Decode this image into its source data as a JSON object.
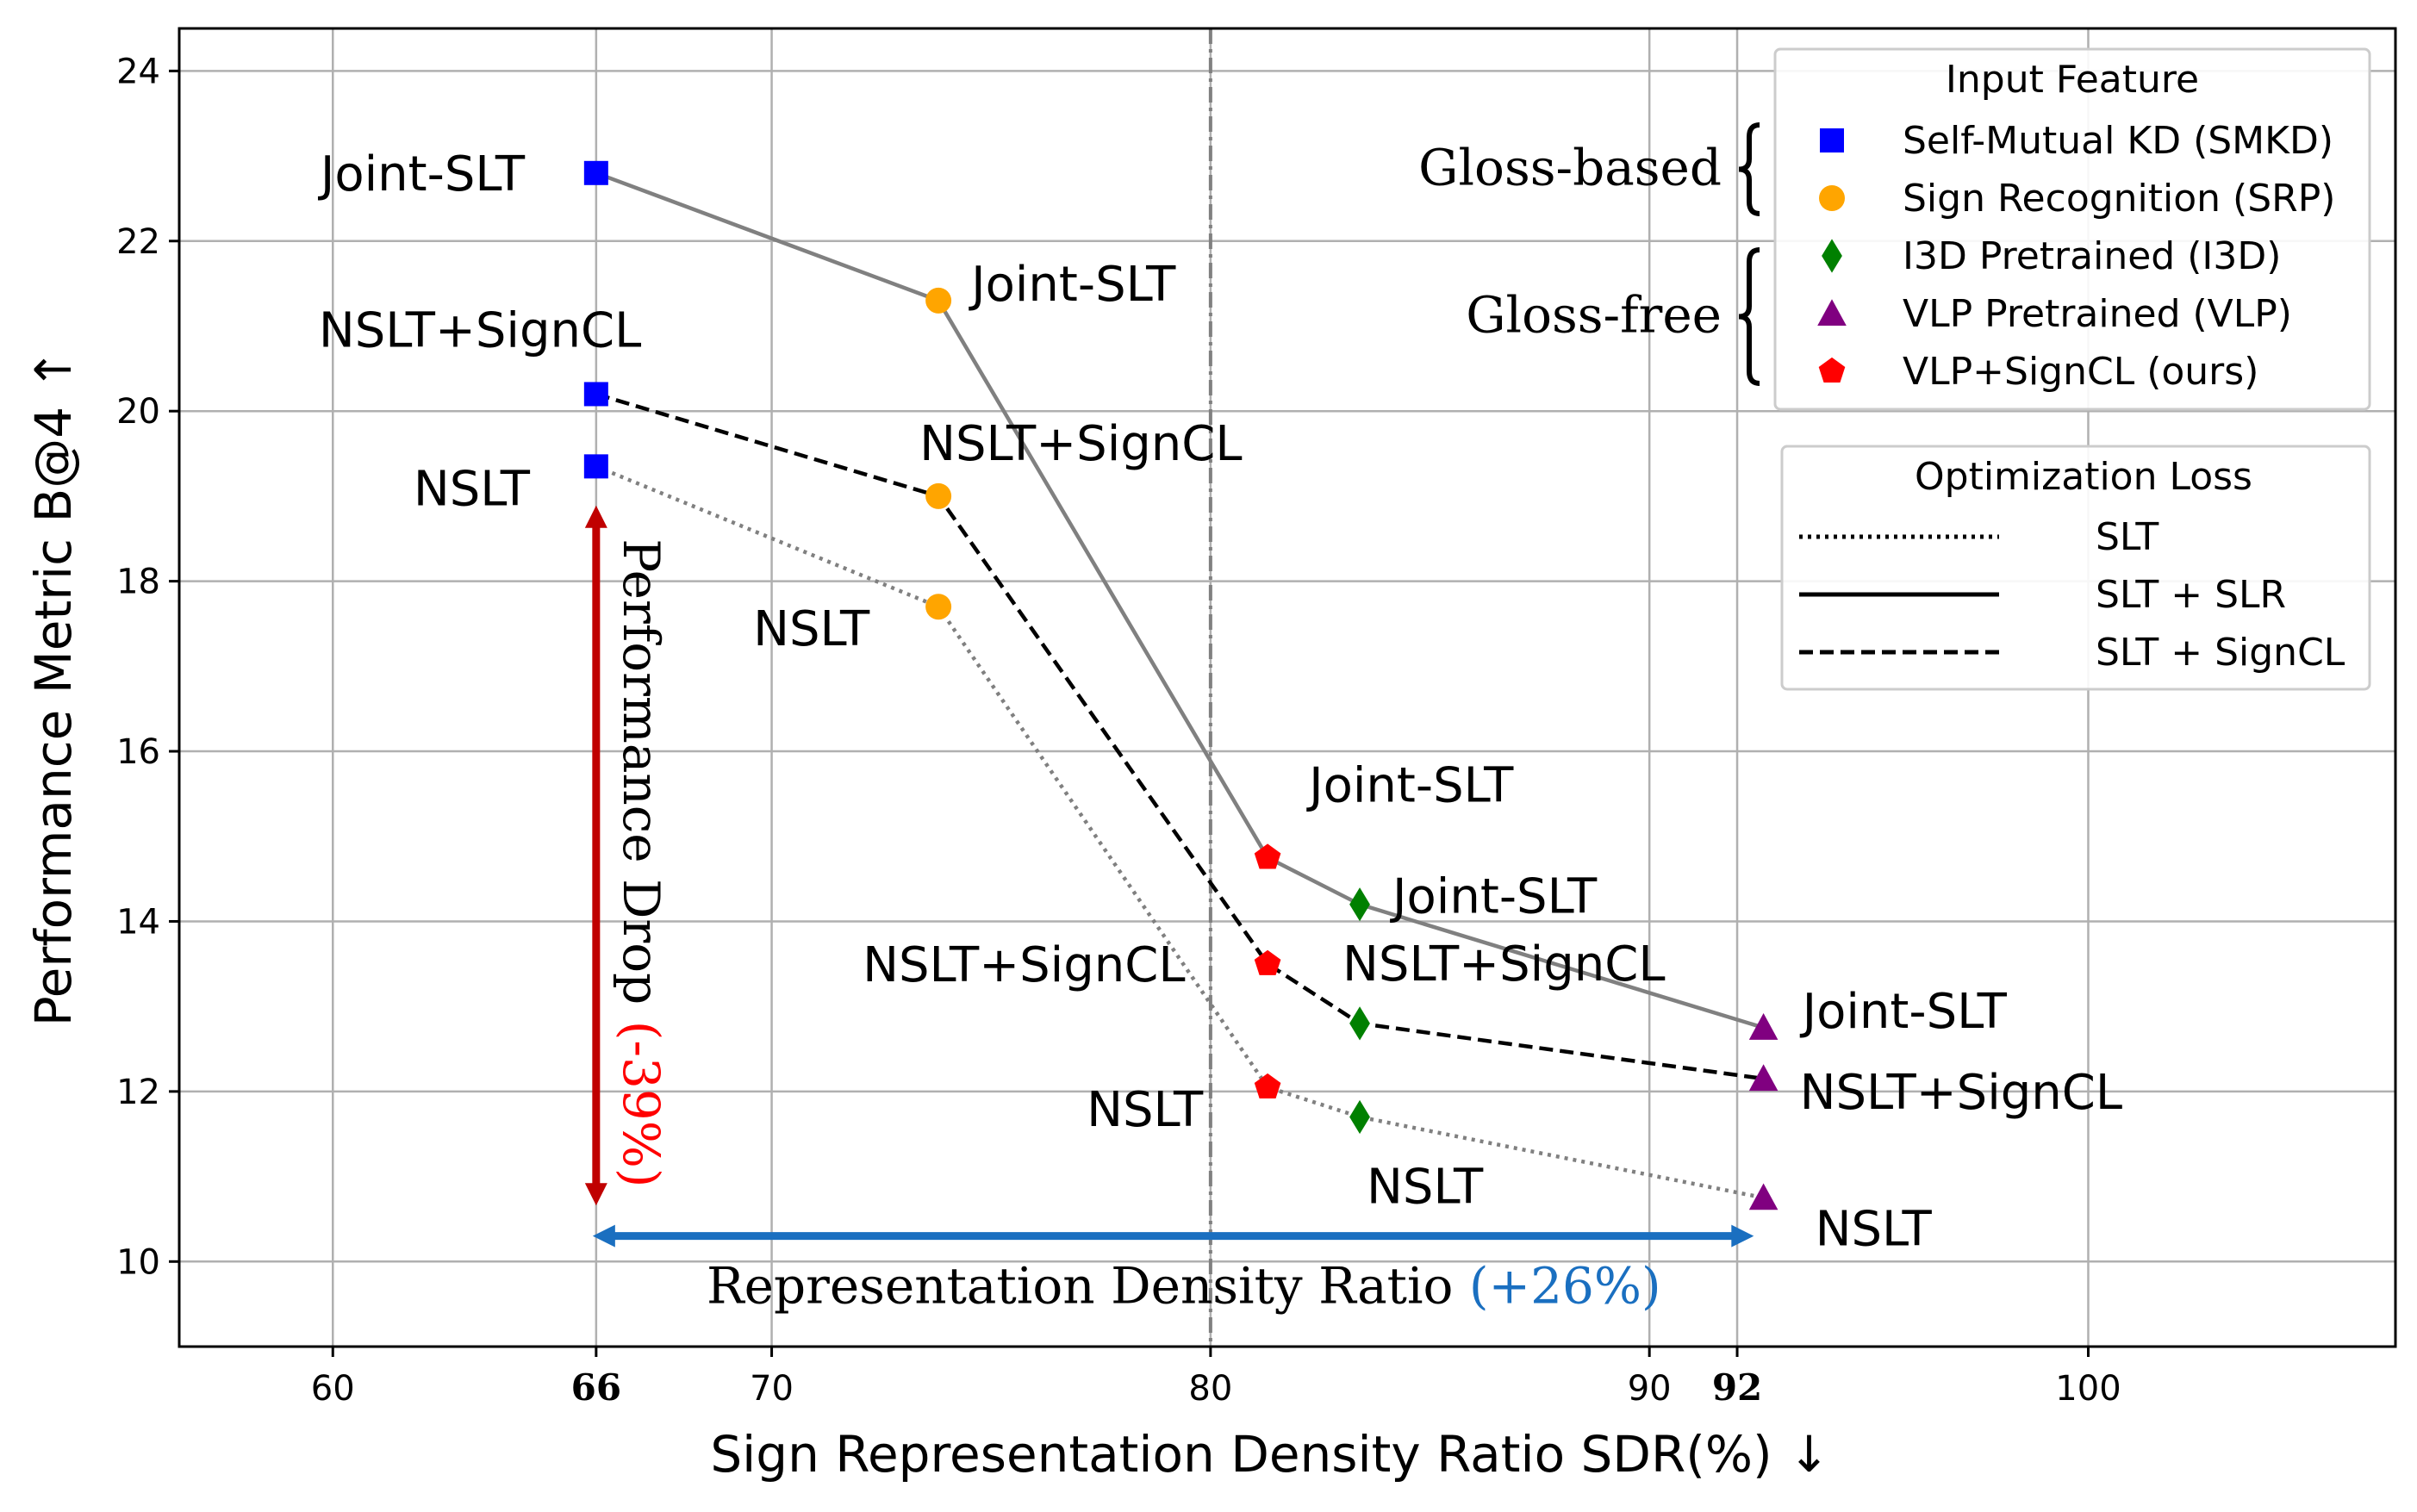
{
  "chart_data": {
    "type": "scatter",
    "xlabel": "Sign Representation Density Ratio SDR(%) ↓",
    "ylabel": "Performance Metric B@4 ↑",
    "xlim": [
      56.5,
      107
    ],
    "ylim": [
      9,
      24.5
    ],
    "xticks": [
      60,
      66,
      70,
      80,
      90,
      92,
      100
    ],
    "bold_xticks": [
      66,
      92
    ],
    "yticks": [
      10,
      12,
      14,
      16,
      18,
      20,
      22,
      24
    ],
    "grid": true,
    "vline_x": 80,
    "points": [
      {
        "feature": "SMKD",
        "loss": "SLT + SLR",
        "x": 66,
        "y": 22.8,
        "label": "Joint-SLT"
      },
      {
        "feature": "SMKD",
        "loss": "SLT + SignCL",
        "x": 66,
        "y": 20.2,
        "label": "NSLT+SignCL"
      },
      {
        "feature": "SMKD",
        "loss": "SLT",
        "x": 66,
        "y": 19.35,
        "label": "NSLT"
      },
      {
        "feature": "SRP",
        "loss": "SLT + SLR",
        "x": 73.8,
        "y": 21.3,
        "label": "Joint-SLT"
      },
      {
        "feature": "SRP",
        "loss": "SLT + SignCL",
        "x": 73.8,
        "y": 19.0,
        "label": "NSLT+SignCL"
      },
      {
        "feature": "SRP",
        "loss": "SLT",
        "x": 73.8,
        "y": 17.7,
        "label": "NSLT"
      },
      {
        "feature": "VLP+SignCL",
        "loss": "SLT + SLR",
        "x": 81.3,
        "y": 14.75,
        "label": "Joint-SLT"
      },
      {
        "feature": "VLP+SignCL",
        "loss": "SLT + SignCL",
        "x": 81.3,
        "y": 13.5,
        "label": "NSLT+SignCL"
      },
      {
        "feature": "VLP+SignCL",
        "loss": "SLT",
        "x": 81.3,
        "y": 12.05,
        "label": "NSLT"
      },
      {
        "feature": "I3D",
        "loss": "SLT + SLR",
        "x": 83.4,
        "y": 14.2,
        "label": "Joint-SLT"
      },
      {
        "feature": "I3D",
        "loss": "SLT + SignCL",
        "x": 83.4,
        "y": 12.8,
        "label": "NSLT+SignCL"
      },
      {
        "feature": "I3D",
        "loss": "SLT",
        "x": 83.4,
        "y": 11.7,
        "label": "NSLT"
      },
      {
        "feature": "VLP",
        "loss": "SLT + SLR",
        "x": 92.6,
        "y": 12.75,
        "label": "Joint-SLT"
      },
      {
        "feature": "VLP",
        "loss": "SLT + SignCL",
        "x": 92.6,
        "y": 12.15,
        "label": "NSLT+SignCL"
      },
      {
        "feature": "VLP",
        "loss": "SLT",
        "x": 92.6,
        "y": 10.75,
        "label": "NSLT"
      }
    ],
    "series": [
      {
        "loss": "SLT + SLR",
        "style": "solid",
        "color": "#808080",
        "x": [
          66,
          73.8,
          81.3,
          83.4,
          92.6
        ],
        "y": [
          22.8,
          21.3,
          14.75,
          14.2,
          12.75
        ]
      },
      {
        "loss": "SLT + SignCL",
        "style": "dashed",
        "color": "#000000",
        "x": [
          66,
          73.8,
          81.3,
          83.4,
          92.6
        ],
        "y": [
          20.2,
          19.0,
          13.5,
          12.8,
          12.15
        ]
      },
      {
        "loss": "SLT",
        "style": "dotted",
        "color": "#808080",
        "x": [
          66,
          73.8,
          81.3,
          83.4,
          92.6
        ],
        "y": [
          19.35,
          17.7,
          12.05,
          11.7,
          10.75
        ]
      }
    ],
    "features": {
      "SMKD": {
        "marker": "square",
        "color": "#0000ff"
      },
      "SRP": {
        "marker": "circle",
        "color": "#ffa500"
      },
      "I3D": {
        "marker": "diamond",
        "color": "#008000"
      },
      "VLP": {
        "marker": "triangle",
        "color": "#800080"
      },
      "VLP+SignCL": {
        "marker": "pentagon",
        "color": "#ff0000"
      }
    },
    "legend_feature": {
      "title": "Input Feature",
      "placement": "top-right",
      "entries": [
        {
          "key": "SMKD",
          "label": "Self-Mutual KD (SMKD)"
        },
        {
          "key": "SRP",
          "label": "Sign Recognition (SRP)"
        },
        {
          "key": "I3D",
          "label": "I3D Pretrained (I3D)"
        },
        {
          "key": "VLP",
          "label": "VLP Pretrained (VLP)"
        },
        {
          "key": "VLP+SignCL",
          "label": "VLP+SignCL (ours)"
        }
      ],
      "groups": [
        {
          "label": "Gloss-based",
          "entries": [
            "SMKD",
            "SRP"
          ]
        },
        {
          "label": "Gloss-free",
          "entries": [
            "I3D",
            "VLP",
            "VLP+SignCL"
          ]
        }
      ]
    },
    "legend_loss": {
      "title": "Optimization Loss",
      "placement": "right",
      "entries": [
        {
          "style": "dotted",
          "label": "SLT"
        },
        {
          "style": "solid",
          "label": "SLT + SLR"
        },
        {
          "style": "dashed",
          "label": "SLT + SignCL"
        }
      ]
    },
    "annotations": {
      "drop": {
        "text": "Performance Drop",
        "value": "(-39%)",
        "x": 66,
        "y_from": 18.85,
        "y_to": 10.7,
        "color": "#c00000",
        "value_color": "#ff0000"
      },
      "ratio": {
        "text": "Representation Density Ratio",
        "value": "(+26%)",
        "x_from": 66,
        "x_to": 92.3,
        "y": 10.3,
        "color": "#1a6fc0"
      }
    }
  }
}
